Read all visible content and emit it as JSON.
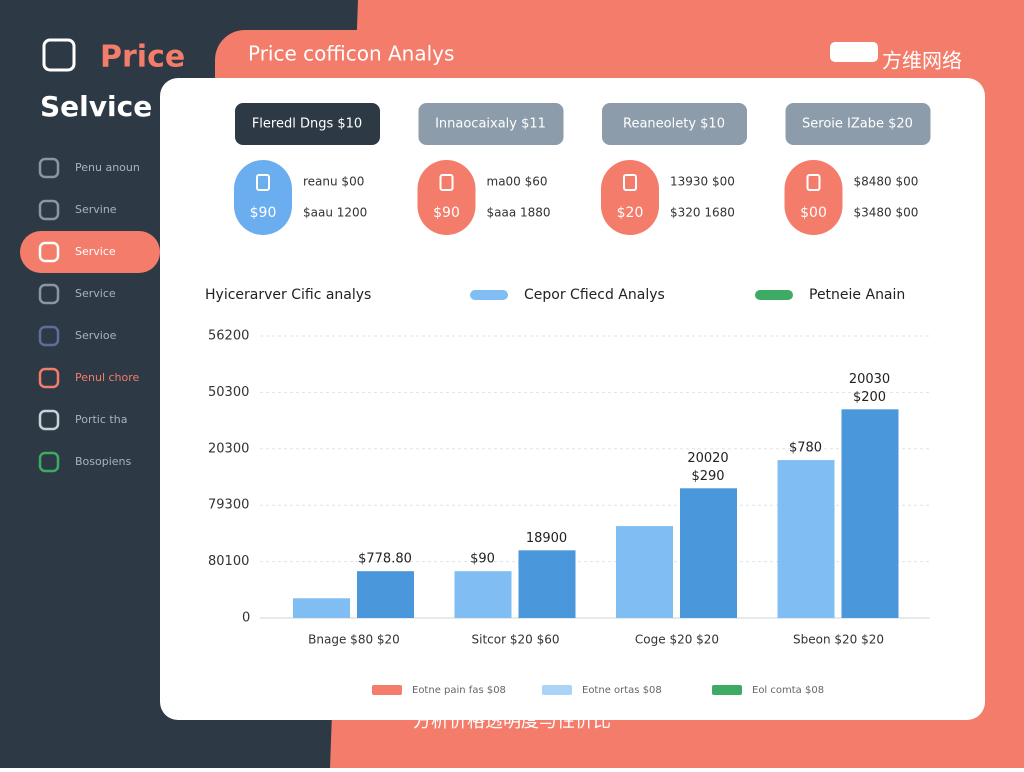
{
  "header": {
    "logo_top": "Price",
    "logo_bottom": "Selvice",
    "title": "Price cofficon Analys",
    "badge": "方维网络"
  },
  "sidebar": {
    "active": 2,
    "items": [
      {
        "label": "Penu anoun",
        "color": "#8a96a3"
      },
      {
        "label": "Servine",
        "color": "#8a96a3"
      },
      {
        "label": "Service",
        "color": "#ffffff"
      },
      {
        "label": "Service",
        "color": "#8a96a3"
      },
      {
        "label": "Servioe",
        "color": "#5b6f9c"
      },
      {
        "label": "Penul chore",
        "color": "#f47c6a"
      },
      {
        "label": "Portic tha",
        "color": "#c9d0d6"
      },
      {
        "label": "Bosopiens",
        "color": "#3dab63"
      }
    ]
  },
  "cards": [
    {
      "button": "Fleredl Dngs $10",
      "amount": "$90",
      "line1": "reanu $00",
      "line2": "$aau 1200",
      "color": "#6aaef0"
    },
    {
      "button": "Innaocaixaly $11",
      "amount": "$90",
      "line1": "ma00 $60",
      "line2": "$aaa 1880",
      "color": "#f47c6a"
    },
    {
      "button": "Reaneolety $10",
      "amount": "$20",
      "line1": "13930 $00",
      "line2": "$320 1680",
      "color": "#f47c6a"
    },
    {
      "button": "Seroie IZabe $20",
      "amount": "$00",
      "line1": "$8480 $00",
      "line2": "$3480 $00",
      "color": "#f47c6a"
    }
  ],
  "chart_data": {
    "type": "bar",
    "title": "Hyicerarver Cific analys",
    "top_legend": [
      {
        "name": "Cepor Cfiecd Analys",
        "color": "#7fbdf2"
      },
      {
        "name": "Petneie Anain",
        "color": "#3dab63"
      }
    ],
    "categories": [
      "Bnage $80  $20",
      "Sitcor $20  $60",
      "Coge $20  $20",
      "Sbeon $20  $20"
    ],
    "series": [
      {
        "color": "#7fbdf2",
        "values": [
          0.35,
          0.83,
          1.63,
          2.8
        ],
        "notes": [
          null,
          [
            "$90"
          ],
          null,
          [
            "$780"
          ]
        ]
      },
      {
        "color": "#4a97dc",
        "values": [
          0.83,
          1.2,
          2.3,
          3.7
        ],
        "notes": [
          [
            "$778.80"
          ],
          [
            "18900"
          ],
          [
            "20020",
            "$290"
          ],
          [
            "20030",
            "$200"
          ]
        ]
      }
    ],
    "ylim": [
      0,
      5
    ],
    "yticks": [
      {
        "value": 0,
        "label": "0"
      },
      {
        "value": 1,
        "label": "80100"
      },
      {
        "value": 2,
        "label": "79300"
      },
      {
        "value": 3,
        "label": "20300"
      },
      {
        "value": 4,
        "label": "50300"
      },
      {
        "value": 5,
        "label": "56200"
      }
    ],
    "grid": true,
    "bottom_legend": [
      {
        "name": "Eotne pain fas $08",
        "color": "#f47c6a"
      },
      {
        "name": "Eotne ortas $08",
        "color": "#a9d3f7"
      },
      {
        "name": "Eol comta $08",
        "color": "#3dab63"
      }
    ]
  },
  "footer": {
    "caption": "方析价格透明度与性价比"
  }
}
